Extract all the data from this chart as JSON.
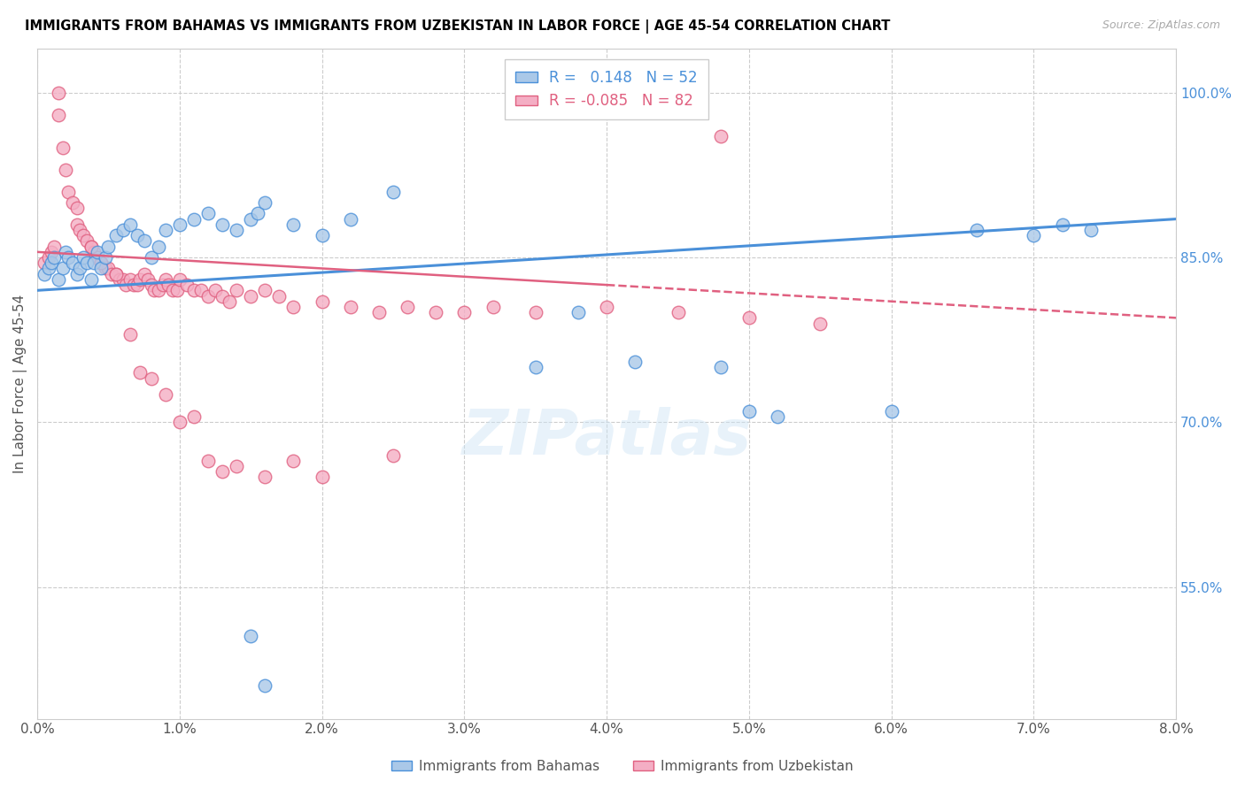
{
  "title": "IMMIGRANTS FROM BAHAMAS VS IMMIGRANTS FROM UZBEKISTAN IN LABOR FORCE | AGE 45-54 CORRELATION CHART",
  "source": "Source: ZipAtlas.com",
  "ylabel": "In Labor Force | Age 45-54",
  "right_yticks": [
    55.0,
    70.0,
    85.0,
    100.0
  ],
  "xmin": 0.0,
  "xmax": 8.0,
  "ymin": 43.0,
  "ymax": 104.0,
  "R_bahamas": 0.148,
  "N_bahamas": 52,
  "R_uzbekistan": -0.085,
  "N_uzbekistan": 82,
  "color_bahamas": "#aac8e8",
  "color_uzbekistan": "#f4aec4",
  "line_color_bahamas": "#4a90d9",
  "line_color_uzbekistan": "#e06080",
  "bahamas_x": [
    0.05,
    0.08,
    0.1,
    0.12,
    0.15,
    0.18,
    0.2,
    0.22,
    0.25,
    0.28,
    0.3,
    0.32,
    0.35,
    0.38,
    0.4,
    0.42,
    0.45,
    0.48,
    0.5,
    0.55,
    0.6,
    0.65,
    0.7,
    0.75,
    0.8,
    0.85,
    0.9,
    1.0,
    1.1,
    1.2,
    1.3,
    1.4,
    1.5,
    1.55,
    1.6,
    1.8,
    2.0,
    2.2,
    2.5,
    3.5,
    3.8,
    4.2,
    4.8,
    5.0,
    5.2,
    6.0,
    6.6,
    7.0,
    7.2,
    7.4,
    1.5,
    1.6
  ],
  "bahamas_y": [
    83.5,
    84.0,
    84.5,
    85.0,
    83.0,
    84.0,
    85.5,
    85.0,
    84.5,
    83.5,
    84.0,
    85.0,
    84.5,
    83.0,
    84.5,
    85.5,
    84.0,
    85.0,
    86.0,
    87.0,
    87.5,
    88.0,
    87.0,
    86.5,
    85.0,
    86.0,
    87.5,
    88.0,
    88.5,
    89.0,
    88.0,
    87.5,
    88.5,
    89.0,
    90.0,
    88.0,
    87.0,
    88.5,
    91.0,
    75.0,
    80.0,
    75.5,
    75.0,
    71.0,
    70.5,
    71.0,
    87.5,
    87.0,
    88.0,
    87.5,
    50.5,
    46.0
  ],
  "uzbekistan_x": [
    0.05,
    0.08,
    0.1,
    0.12,
    0.15,
    0.18,
    0.2,
    0.22,
    0.25,
    0.28,
    0.3,
    0.32,
    0.35,
    0.38,
    0.4,
    0.42,
    0.45,
    0.48,
    0.5,
    0.52,
    0.55,
    0.58,
    0.6,
    0.62,
    0.65,
    0.68,
    0.7,
    0.72,
    0.75,
    0.78,
    0.8,
    0.82,
    0.85,
    0.88,
    0.9,
    0.92,
    0.95,
    0.98,
    1.0,
    1.05,
    1.1,
    1.15,
    1.2,
    1.25,
    1.3,
    1.35,
    1.4,
    1.5,
    1.6,
    1.7,
    1.8,
    2.0,
    2.2,
    2.4,
    2.6,
    2.8,
    3.0,
    3.2,
    3.5,
    4.0,
    4.5,
    5.0,
    5.5,
    0.15,
    0.28,
    0.38,
    0.45,
    0.55,
    0.65,
    0.72,
    0.8,
    0.9,
    1.0,
    1.1,
    1.2,
    1.3,
    1.4,
    1.6,
    1.8,
    2.0,
    2.5,
    4.8
  ],
  "uzbekistan_y": [
    84.5,
    85.0,
    85.5,
    86.0,
    100.0,
    95.0,
    93.0,
    91.0,
    90.0,
    88.0,
    87.5,
    87.0,
    86.5,
    86.0,
    85.5,
    85.0,
    84.5,
    84.0,
    84.0,
    83.5,
    83.5,
    83.0,
    83.0,
    82.5,
    83.0,
    82.5,
    82.5,
    83.0,
    83.5,
    83.0,
    82.5,
    82.0,
    82.0,
    82.5,
    83.0,
    82.5,
    82.0,
    82.0,
    83.0,
    82.5,
    82.0,
    82.0,
    81.5,
    82.0,
    81.5,
    81.0,
    82.0,
    81.5,
    82.0,
    81.5,
    80.5,
    81.0,
    80.5,
    80.0,
    80.5,
    80.0,
    80.0,
    80.5,
    80.0,
    80.5,
    80.0,
    79.5,
    79.0,
    98.0,
    89.5,
    86.0,
    84.5,
    83.5,
    78.0,
    74.5,
    74.0,
    72.5,
    70.0,
    70.5,
    66.5,
    65.5,
    66.0,
    65.0,
    66.5,
    65.0,
    67.0,
    96.0
  ]
}
